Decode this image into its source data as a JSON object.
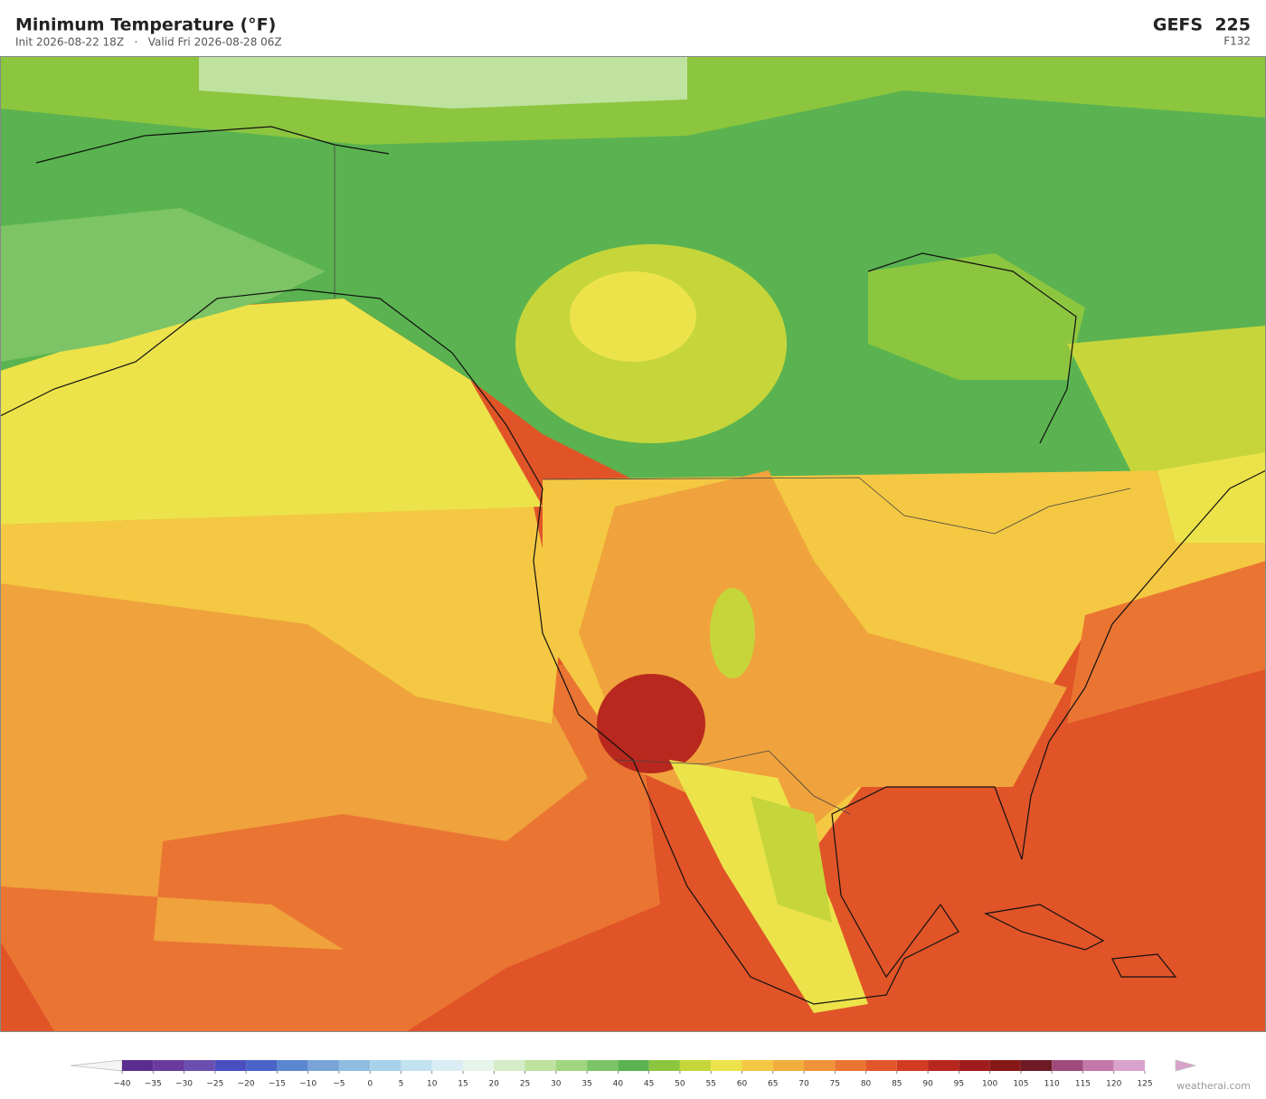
{
  "header": {
    "title": "Minimum Temperature  (°F)",
    "subtitle": "Init 2026-08-22 18Z   ·   Valid Fri 2026-08-28 06Z",
    "model": "GEFS  225",
    "forecast_hour": "F132"
  },
  "colorbar": {
    "ticks": [
      {
        "value": -40,
        "label": "−40"
      },
      {
        "value": -35,
        "label": "−35"
      },
      {
        "value": -30,
        "label": "−30"
      },
      {
        "value": -25,
        "label": "−25"
      },
      {
        "value": -20,
        "label": "−20"
      },
      {
        "value": -15,
        "label": "−15"
      },
      {
        "value": -10,
        "label": "−10"
      },
      {
        "value": -5,
        "label": "−5"
      },
      0,
      5,
      10,
      15,
      20,
      25,
      30,
      35,
      40,
      45,
      50,
      55,
      60,
      65,
      70,
      75,
      80,
      85,
      90,
      95,
      100,
      105,
      110,
      115,
      120,
      125
    ],
    "colors": [
      "#5b2d8e",
      "#6a3a9e",
      "#6a4fb0",
      "#4a4fc0",
      "#4a63c8",
      "#5b86d0",
      "#7aa4d8",
      "#8fbde0",
      "#a7d2ea",
      "#c2e2f0",
      "#daedf4",
      "#e6f4ea",
      "#d4ecc8",
      "#bfe29e",
      "#a0d67e",
      "#7cc465",
      "#5ab350",
      "#8cc63f",
      "#c6d63a",
      "#ece34a",
      "#f4c842",
      "#f2ae3c",
      "#ef943a",
      "#ea7532",
      "#e2572a",
      "#d23b22",
      "#b8281e",
      "#a01c1c",
      "#861818",
      "#6c1a24",
      "#9e4a7a",
      "#c478aa",
      "#d9a2cc"
    ]
  },
  "footer": {
    "credit": "weatherai.com"
  }
}
